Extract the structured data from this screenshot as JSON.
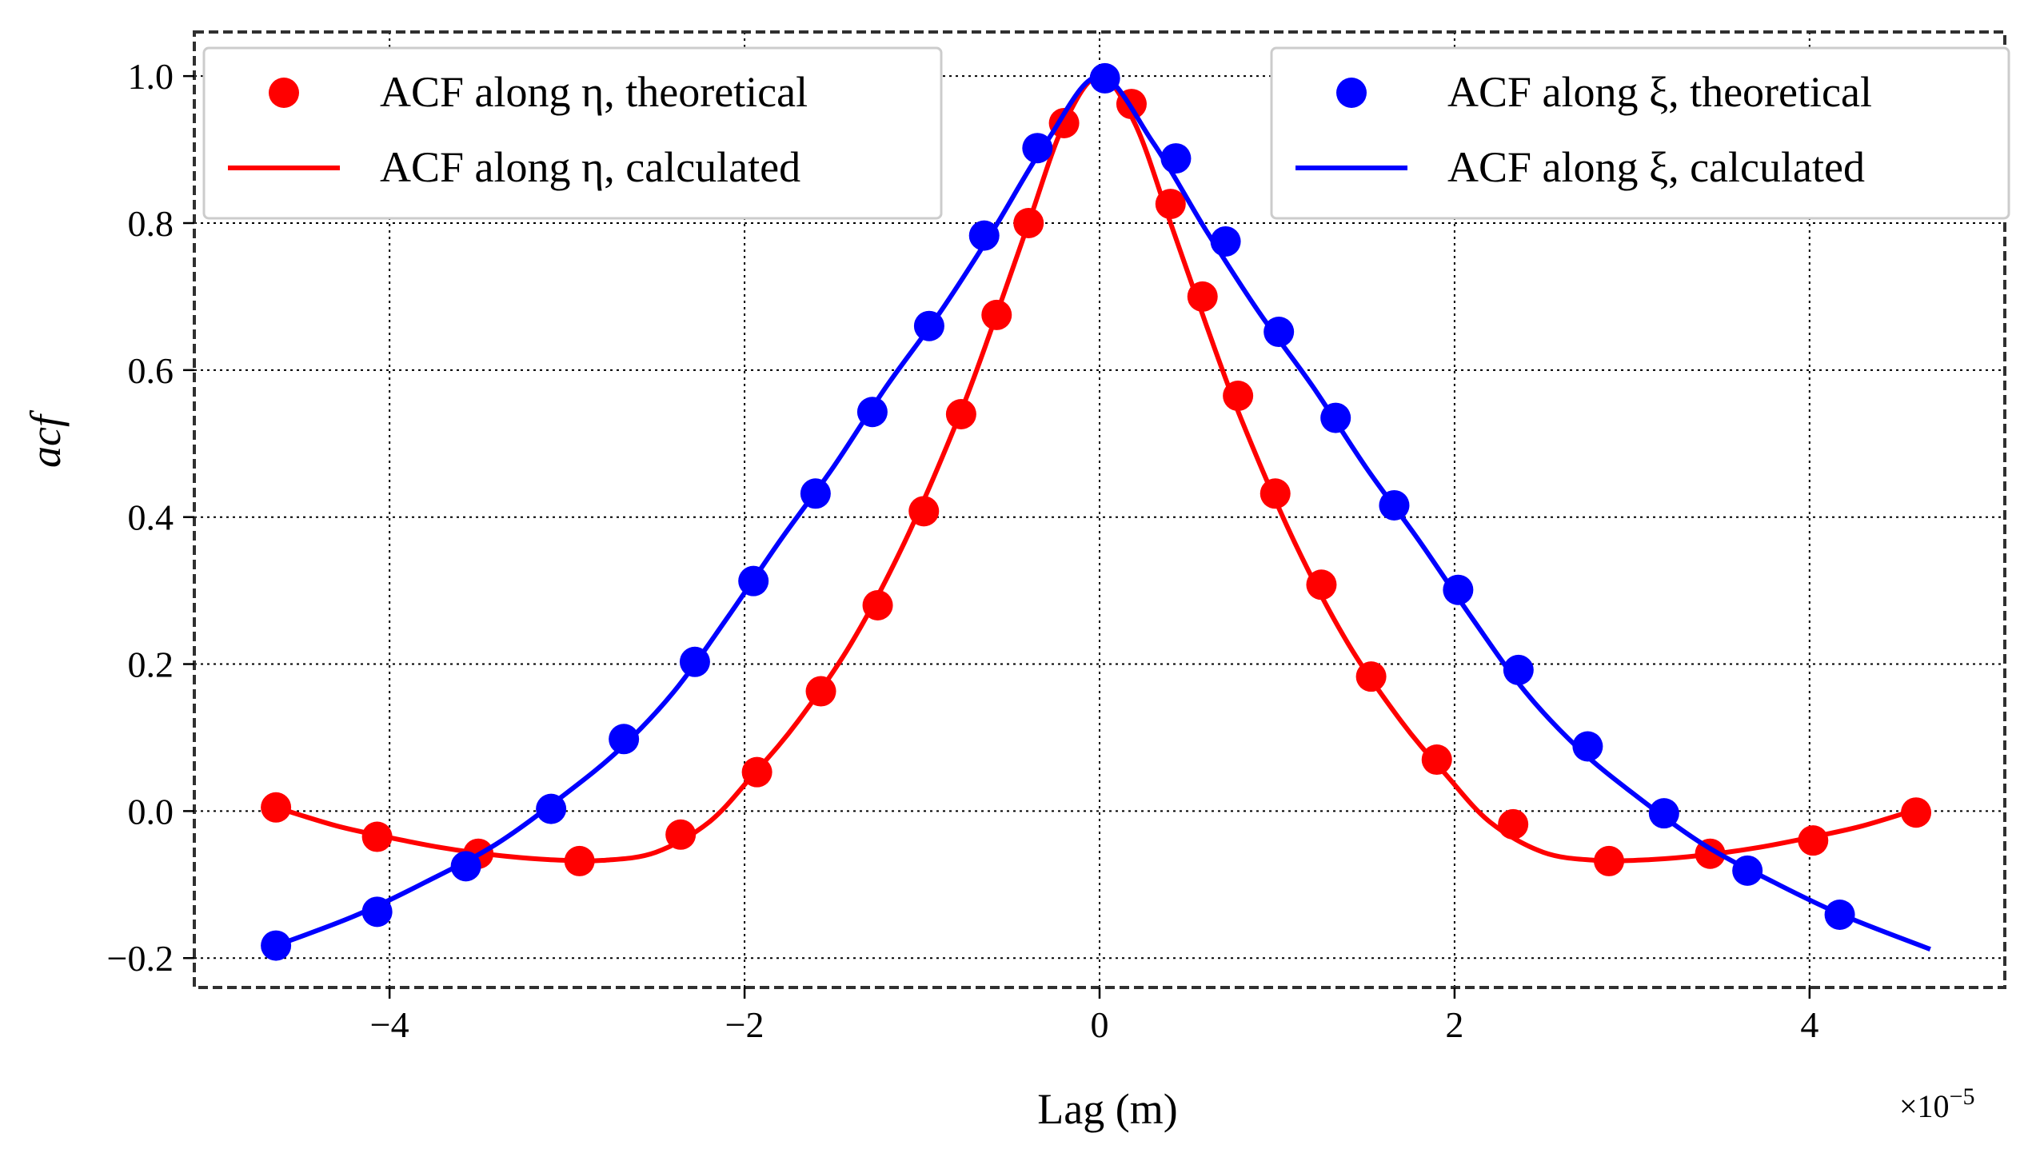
{
  "chart_data": {
    "type": "line",
    "title": "",
    "xlabel": "Lag (m)",
    "ylabel": "acf",
    "x_multiplier_label": "×10",
    "x_multiplier_exponent": "−5",
    "xlim": [
      -5.1,
      5.1
    ],
    "ylim": [
      -0.24,
      1.06
    ],
    "xticks": [
      -4,
      -2,
      0,
      2,
      4
    ],
    "xtick_labels": [
      "−4",
      "−2",
      "0",
      "2",
      "4"
    ],
    "yticks": [
      -0.2,
      0.0,
      0.2,
      0.4,
      0.6,
      0.8,
      1.0
    ],
    "ytick_labels": [
      "−0.2",
      "0.0",
      "0.2",
      "0.4",
      "0.6",
      "0.8",
      "1.0"
    ],
    "grid": true,
    "series": [
      {
        "name": "ACF along η, calculated",
        "kind": "line",
        "color": "#ff0000",
        "legend": "top-left",
        "x": [
          -4.64,
          -4.3,
          -4.0,
          -3.7,
          -3.4,
          -3.1,
          -2.8,
          -2.5,
          -2.2,
          -1.95,
          -1.7,
          -1.4,
          -1.1,
          -0.8,
          -0.6,
          -0.4,
          -0.2,
          0.0,
          0.2,
          0.4,
          0.6,
          0.8,
          1.1,
          1.4,
          1.7,
          1.95,
          2.2,
          2.5,
          2.8,
          3.1,
          3.4,
          3.7,
          4.0,
          4.3,
          4.64
        ],
        "values": [
          0.005,
          -0.02,
          -0.036,
          -0.05,
          -0.06,
          -0.066,
          -0.067,
          -0.056,
          -0.015,
          0.05,
          0.122,
          0.228,
          0.365,
          0.532,
          0.662,
          0.8,
          0.935,
          1.0,
          0.935,
          0.8,
          0.662,
          0.532,
          0.365,
          0.228,
          0.122,
          0.05,
          -0.015,
          -0.056,
          -0.067,
          -0.066,
          -0.06,
          -0.05,
          -0.036,
          -0.02,
          0.005
        ]
      },
      {
        "name": "ACF along η, theoretical",
        "kind": "marker",
        "color": "#ff0000",
        "legend": "top-left",
        "x": [
          -4.64,
          -4.07,
          -3.5,
          -2.93,
          -2.36,
          -1.93,
          -1.57,
          -1.25,
          -0.99,
          -0.78,
          -0.58,
          -0.4,
          -0.2,
          0.18,
          0.4,
          0.58,
          0.78,
          0.99,
          1.25,
          1.53,
          1.9,
          2.33,
          2.87,
          3.44,
          4.02,
          4.6
        ],
        "values": [
          0.005,
          -0.035,
          -0.058,
          -0.068,
          -0.032,
          0.053,
          0.163,
          0.28,
          0.408,
          0.54,
          0.675,
          0.8,
          0.936,
          0.962,
          0.826,
          0.7,
          0.565,
          0.432,
          0.308,
          0.183,
          0.07,
          -0.018,
          -0.068,
          -0.058,
          -0.04,
          -0.002
        ]
      },
      {
        "name": "ACF along ξ, calculated",
        "kind": "line",
        "color": "#0000ff",
        "legend": "top-right",
        "x": [
          -4.64,
          -4.2,
          -3.8,
          -3.4,
          -3.0,
          -2.7,
          -2.4,
          -2.1,
          -1.8,
          -1.5,
          -1.2,
          -0.9,
          -0.6,
          -0.3,
          0.0,
          0.3,
          0.6,
          0.9,
          1.2,
          1.5,
          1.8,
          2.1,
          2.4,
          2.7,
          3.0,
          3.4,
          3.8,
          4.2,
          4.68
        ],
        "values": [
          -0.183,
          -0.143,
          -0.097,
          -0.045,
          0.025,
          0.085,
          0.162,
          0.262,
          0.368,
          0.468,
          0.578,
          0.678,
          0.79,
          0.91,
          1.0,
          0.91,
          0.79,
          0.678,
          0.578,
          0.468,
          0.368,
          0.262,
          0.162,
          0.085,
          0.025,
          -0.045,
          -0.097,
          -0.143,
          -0.188
        ]
      },
      {
        "name": "ACF along ξ, theoretical",
        "kind": "marker",
        "color": "#0000ff",
        "legend": "top-right",
        "x": [
          -4.64,
          -4.07,
          -3.57,
          -3.09,
          -2.68,
          -2.28,
          -1.95,
          -1.6,
          -1.28,
          -0.96,
          -0.65,
          -0.35,
          0.03,
          0.43,
          0.71,
          1.01,
          1.33,
          1.66,
          2.02,
          2.36,
          2.75,
          3.18,
          3.65,
          4.17
        ],
        "values": [
          -0.183,
          -0.137,
          -0.075,
          0.003,
          0.098,
          0.203,
          0.313,
          0.432,
          0.543,
          0.66,
          0.783,
          0.902,
          0.997,
          0.888,
          0.775,
          0.652,
          0.535,
          0.416,
          0.301,
          0.192,
          0.088,
          -0.003,
          -0.081,
          -0.141
        ]
      }
    ]
  }
}
